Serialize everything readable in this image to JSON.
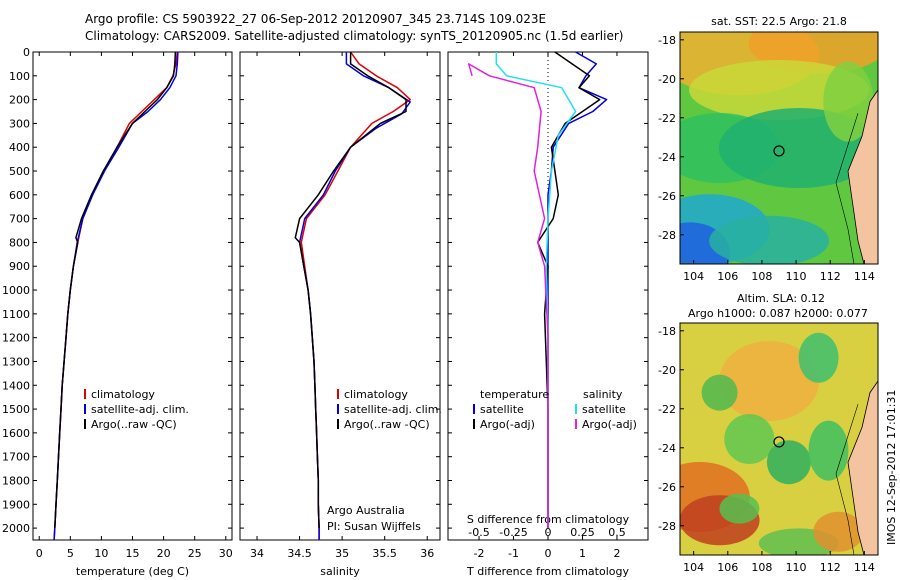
{
  "header": {
    "line1": "Argo profile: CS 5903922_27 06-Sep-2012 20120907_345 23.714S 109.023E",
    "line2": "Climatology: CARS2009. Satellite-adjusted climatology: synTS_20120905.nc (1.5d earlier)"
  },
  "timestamp": "IMOS 12-Sep-2012 17:01:31",
  "colors": {
    "climatology": "#e00000",
    "satellite": "#0000e0",
    "argo": "#000000",
    "salinity_satellite": "#20e0f0",
    "salinity_argo": "#e020e0"
  },
  "chart_data": [
    {
      "type": "line",
      "xlabel": "temperature (deg C)",
      "xlim": [
        -1,
        31
      ],
      "xticks": [
        0,
        5,
        10,
        15,
        20,
        25,
        30
      ],
      "ylim": [
        0,
        2050
      ],
      "yticks": [
        0,
        100,
        200,
        300,
        400,
        500,
        600,
        700,
        800,
        900,
        1000,
        1100,
        1200,
        1300,
        1400,
        1500,
        1600,
        1700,
        1800,
        1900,
        2000
      ],
      "legend": [
        "climatology",
        "satellite-adj. clim.",
        "Argo(..raw -QC)"
      ],
      "series": [
        {
          "name": "climatology",
          "color": "#e00000",
          "points": [
            [
              22.2,
              0
            ],
            [
              22.0,
              50
            ],
            [
              21.5,
              100
            ],
            [
              20.5,
              150
            ],
            [
              18.5,
              200
            ],
            [
              16.5,
              250
            ],
            [
              14.5,
              300
            ],
            [
              12.5,
              400
            ],
            [
              10.5,
              500
            ],
            [
              8.5,
              600
            ],
            [
              7.0,
              700
            ],
            [
              6.2,
              800
            ],
            [
              5.5,
              900
            ],
            [
              5.0,
              1000
            ],
            [
              4.6,
              1100
            ],
            [
              4.3,
              1200
            ],
            [
              4.0,
              1300
            ],
            [
              3.7,
              1400
            ],
            [
              3.5,
              1500
            ],
            [
              3.3,
              1600
            ],
            [
              3.1,
              1700
            ],
            [
              2.9,
              1800
            ],
            [
              2.7,
              1900
            ],
            [
              2.5,
              2000
            ],
            [
              2.4,
              2050
            ]
          ]
        },
        {
          "name": "satellite-adj. clim.",
          "color": "#0000e0",
          "points": [
            [
              22.3,
              0
            ],
            [
              22.2,
              50
            ],
            [
              22.0,
              100
            ],
            [
              21.0,
              150
            ],
            [
              19.5,
              200
            ],
            [
              17.5,
              250
            ],
            [
              15.0,
              300
            ],
            [
              12.8,
              400
            ],
            [
              10.5,
              500
            ],
            [
              8.6,
              600
            ],
            [
              7.0,
              700
            ],
            [
              6.1,
              800
            ],
            [
              5.5,
              900
            ],
            [
              5.0,
              1000
            ],
            [
              4.6,
              1100
            ],
            [
              4.3,
              1200
            ],
            [
              4.0,
              1300
            ],
            [
              3.7,
              1400
            ],
            [
              3.5,
              1500
            ],
            [
              3.3,
              1600
            ],
            [
              3.1,
              1700
            ],
            [
              2.9,
              1800
            ],
            [
              2.7,
              1900
            ],
            [
              2.5,
              2000
            ],
            [
              2.4,
              2050
            ]
          ]
        },
        {
          "name": "Argo(..raw -QC)",
          "color": "#000000",
          "points": [
            [
              21.9,
              0
            ],
            [
              21.8,
              50
            ],
            [
              21.6,
              100
            ],
            [
              20.5,
              150
            ],
            [
              19.0,
              200
            ],
            [
              17.0,
              250
            ],
            [
              15.0,
              300
            ],
            [
              12.5,
              400
            ],
            [
              10.3,
              500
            ],
            [
              8.4,
              600
            ],
            [
              6.8,
              700
            ],
            [
              5.9,
              780
            ],
            [
              6.2,
              800
            ],
            [
              5.5,
              900
            ],
            [
              5.0,
              1000
            ],
            [
              4.6,
              1100
            ],
            [
              4.3,
              1200
            ],
            [
              4.0,
              1300
            ],
            [
              3.7,
              1400
            ],
            [
              3.5,
              1500
            ],
            [
              3.3,
              1600
            ],
            [
              3.1,
              1700
            ],
            [
              2.9,
              1800
            ],
            [
              2.7,
              1900
            ],
            [
              2.5,
              2000
            ]
          ]
        }
      ]
    },
    {
      "type": "line",
      "xlabel": "salinity",
      "xlim": [
        33.8,
        36.15
      ],
      "xticks": [
        34,
        34.5,
        35,
        35.5,
        36
      ],
      "ylim": [
        0,
        2050
      ],
      "legend": [
        "climatology",
        "satellite-adj. clim.",
        "Argo(..raw -QC)"
      ],
      "annotation": [
        "Argo Australia",
        "PI: Susan Wijffels"
      ],
      "series": [
        {
          "name": "climatology",
          "color": "#e00000",
          "points": [
            [
              35.1,
              0
            ],
            [
              35.2,
              50
            ],
            [
              35.4,
              100
            ],
            [
              35.65,
              150
            ],
            [
              35.8,
              200
            ],
            [
              35.6,
              250
            ],
            [
              35.35,
              300
            ],
            [
              35.1,
              400
            ],
            [
              34.95,
              500
            ],
            [
              34.8,
              600
            ],
            [
              34.58,
              700
            ],
            [
              34.52,
              800
            ],
            [
              34.56,
              900
            ],
            [
              34.6,
              1000
            ],
            [
              34.63,
              1100
            ],
            [
              34.65,
              1200
            ],
            [
              34.67,
              1300
            ],
            [
              34.68,
              1400
            ],
            [
              34.69,
              1500
            ],
            [
              34.7,
              1600
            ],
            [
              34.71,
              1700
            ],
            [
              34.72,
              1800
            ],
            [
              34.72,
              1900
            ],
            [
              34.73,
              2000
            ],
            [
              34.73,
              2050
            ]
          ]
        },
        {
          "name": "satellite-adj. clim.",
          "color": "#0000e0",
          "points": [
            [
              35.05,
              0
            ],
            [
              35.05,
              50
            ],
            [
              35.25,
              100
            ],
            [
              35.55,
              150
            ],
            [
              35.8,
              210
            ],
            [
              35.7,
              260
            ],
            [
              35.4,
              320
            ],
            [
              35.1,
              400
            ],
            [
              34.92,
              500
            ],
            [
              34.78,
              600
            ],
            [
              34.56,
              700
            ],
            [
              34.5,
              800
            ],
            [
              34.55,
              900
            ],
            [
              34.6,
              1000
            ],
            [
              34.63,
              1100
            ],
            [
              34.65,
              1200
            ],
            [
              34.67,
              1300
            ],
            [
              34.68,
              1400
            ],
            [
              34.69,
              1500
            ],
            [
              34.7,
              1600
            ],
            [
              34.71,
              1700
            ],
            [
              34.72,
              1800
            ],
            [
              34.72,
              1900
            ],
            [
              34.73,
              2000
            ],
            [
              34.73,
              2050
            ]
          ]
        },
        {
          "name": "Argo(..raw -QC)",
          "color": "#000000",
          "points": [
            [
              35.1,
              0
            ],
            [
              35.1,
              50
            ],
            [
              35.3,
              100
            ],
            [
              35.55,
              150
            ],
            [
              35.75,
              200
            ],
            [
              35.75,
              250
            ],
            [
              35.45,
              300
            ],
            [
              35.1,
              400
            ],
            [
              34.9,
              500
            ],
            [
              34.72,
              600
            ],
            [
              34.5,
              700
            ],
            [
              34.45,
              780
            ],
            [
              34.5,
              800
            ],
            [
              34.55,
              900
            ],
            [
              34.6,
              1000
            ],
            [
              34.63,
              1100
            ],
            [
              34.65,
              1200
            ],
            [
              34.67,
              1300
            ],
            [
              34.68,
              1400
            ],
            [
              34.69,
              1500
            ],
            [
              34.7,
              1600
            ],
            [
              34.71,
              1700
            ],
            [
              34.72,
              1800
            ],
            [
              34.72,
              1900
            ],
            [
              34.73,
              2000
            ]
          ]
        }
      ]
    },
    {
      "type": "line",
      "xlabel": "T difference from climatology",
      "xlabel_top": "S difference from climatology",
      "xlim": [
        -2.9,
        2.9
      ],
      "xticks": [
        -2,
        -1,
        0,
        1,
        2
      ],
      "s_ticks": [
        "-0.5",
        "-0.25",
        "0",
        "0.25",
        "0.5"
      ],
      "s_tick_positions": [
        -2,
        -1,
        0,
        1,
        2
      ],
      "ylim": [
        0,
        2050
      ],
      "legend_temperature": {
        "title": "temperature",
        "items": [
          "satellite",
          "Argo(-adj)"
        ]
      },
      "legend_salinity": {
        "title": "salinity",
        "items": [
          "satellite",
          "Argo(-adj)"
        ]
      },
      "series": [
        {
          "name": "temperature satellite",
          "color": "#0000e0",
          "points": [
            [
              0.8,
              0
            ],
            [
              1.4,
              50
            ],
            [
              1.1,
              100
            ],
            [
              0.9,
              150
            ],
            [
              1.7,
              200
            ],
            [
              1.3,
              250
            ],
            [
              0.6,
              300
            ],
            [
              0.15,
              400
            ],
            [
              0.1,
              500
            ],
            [
              0.0,
              600
            ],
            [
              0,
              800
            ],
            [
              0,
              2000
            ]
          ]
        },
        {
          "name": "temperature Argo(-adj)",
          "color": "#000000",
          "points": [
            [
              0.2,
              0
            ],
            [
              0.7,
              50
            ],
            [
              1.2,
              100
            ],
            [
              0.9,
              150
            ],
            [
              1.5,
              200
            ],
            [
              1.0,
              250
            ],
            [
              0.5,
              300
            ],
            [
              0.1,
              400
            ],
            [
              0.2,
              500
            ],
            [
              0.3,
              600
            ],
            [
              0.15,
              700
            ],
            [
              -0.3,
              800
            ],
            [
              0.0,
              900
            ],
            [
              -0.1,
              1100
            ],
            [
              0,
              1500
            ],
            [
              0,
              2000
            ]
          ]
        },
        {
          "name": "salinity satellite",
          "color": "#20e0f0",
          "points": [
            [
              -1.5,
              0
            ],
            [
              -1.5,
              50
            ],
            [
              -1.2,
              100
            ],
            [
              0.4,
              150
            ],
            [
              0.8,
              250
            ],
            [
              0.3,
              350
            ],
            [
              0.1,
              500
            ],
            [
              0.0,
              700
            ],
            [
              -0.05,
              900
            ],
            [
              0,
              1200
            ],
            [
              0,
              2000
            ]
          ]
        },
        {
          "name": "salinity Argo(-adj)",
          "color": "#e020e0",
          "points": [
            [
              -2.2,
              100
            ],
            [
              -2.3,
              50
            ],
            [
              -1.7,
              100
            ],
            [
              -0.4,
              150
            ],
            [
              -0.2,
              250
            ],
            [
              -0.3,
              400
            ],
            [
              -0.4,
              500
            ],
            [
              -0.1,
              700
            ],
            [
              -0.3,
              800
            ],
            [
              -0.1,
              900
            ],
            [
              0,
              1200
            ],
            [
              0,
              2000
            ]
          ]
        }
      ]
    }
  ],
  "maps": [
    {
      "title": "sat. SST: 22.5 Argo: 21.8",
      "xticks": [
        "104",
        "106",
        "108",
        "110",
        "112",
        "114"
      ],
      "yticks": [
        "-18",
        "-20",
        "-22",
        "-24",
        "-26",
        "-28"
      ],
      "xlim": [
        103.2,
        114.8
      ],
      "ylim": [
        -29.5,
        -17.6
      ],
      "marker": [
        109.0,
        -23.7
      ]
    },
    {
      "title_line1": "Altim. SLA: 0.12",
      "title_line2": "Argo h1000: 0.087 h2000: 0.077",
      "xticks": [
        "104",
        "106",
        "108",
        "110",
        "112",
        "114"
      ],
      "yticks": [
        "-18",
        "-20",
        "-22",
        "-24",
        "-26",
        "-28"
      ],
      "xlim": [
        103.2,
        114.8
      ],
      "ylim": [
        -29.5,
        -17.6
      ],
      "marker": [
        109.0,
        -23.7
      ]
    }
  ]
}
